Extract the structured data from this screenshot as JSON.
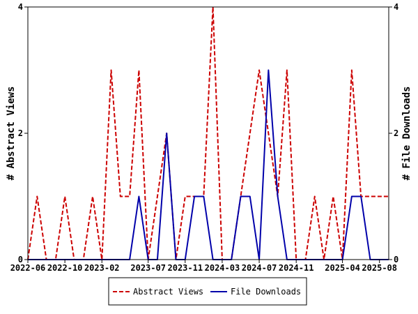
{
  "chart_data": {
    "type": "line",
    "title": "",
    "y_left_label": "# Abstract Views",
    "y_right_label": "# File Downloads",
    "ylim": [
      0,
      4
    ],
    "y_ticks": [
      0,
      2,
      4
    ],
    "x_ticks": [
      "2022-06",
      "2022-10",
      "2023-02",
      "2023-07",
      "2023-11",
      "2024-03",
      "2024-07",
      "2024-11",
      "2025-04",
      "2025-08"
    ],
    "grid": false,
    "legend_placement": "bottom",
    "x": [
      "2022-06",
      "2022-07",
      "2022-08",
      "2022-09",
      "2022-10",
      "2022-11",
      "2022-12",
      "2023-01",
      "2023-02",
      "2023-03",
      "2023-04",
      "2023-05",
      "2023-06",
      "2023-07",
      "2023-08",
      "2023-09",
      "2023-10",
      "2023-11",
      "2023-12",
      "2024-01",
      "2024-02",
      "2024-03",
      "2024-04",
      "2024-05",
      "2024-06",
      "2024-07",
      "2024-08",
      "2024-09",
      "2024-10",
      "2024-11",
      "2024-12",
      "2025-01",
      "2025-02",
      "2025-03",
      "2025-04",
      "2025-05",
      "2025-06",
      "2025-07",
      "2025-08",
      "2025-09"
    ],
    "series": [
      {
        "name": "Abstract Views",
        "color": "#cc0000",
        "style": "dashed",
        "values": [
          0,
          1,
          0,
          0,
          1,
          0,
          0,
          1,
          0,
          3,
          1,
          1,
          3,
          0,
          1,
          2,
          0,
          1,
          1,
          1,
          4,
          0,
          0,
          1,
          2,
          3,
          2,
          1,
          3,
          0,
          0,
          1,
          0,
          1,
          0,
          3,
          1,
          1,
          1,
          1
        ]
      },
      {
        "name": "File Downloads",
        "color": "#0000aa",
        "style": "solid",
        "values": [
          0,
          0,
          0,
          0,
          0,
          0,
          0,
          0,
          0,
          0,
          0,
          0,
          1,
          0,
          0,
          2,
          0,
          0,
          1,
          1,
          0,
          0,
          0,
          1,
          1,
          0,
          3,
          1,
          0,
          0,
          0,
          0,
          0,
          0,
          0,
          1,
          1,
          0,
          0,
          0
        ]
      }
    ]
  }
}
